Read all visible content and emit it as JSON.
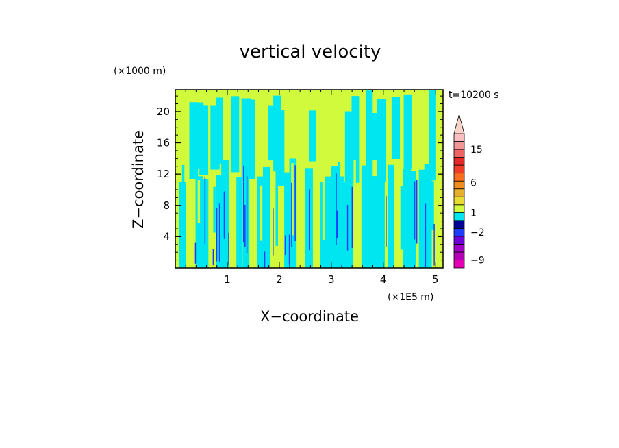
{
  "chart_data": {
    "type": "heatmap",
    "title": "vertical velocity",
    "xlabel": "X−coordinate",
    "ylabel": "Z−coordinate",
    "x_unit": "(×1E5 m)",
    "y_unit": "(×1000 m)",
    "time_label": "t=10200 s",
    "xlim": [
      0,
      5.15
    ],
    "ylim": [
      0,
      22.8
    ],
    "x_ticks": [
      {
        "value": 1,
        "label": "1"
      },
      {
        "value": 2,
        "label": "2"
      },
      {
        "value": 3,
        "label": "3"
      },
      {
        "value": 4,
        "label": "4"
      },
      {
        "value": 5,
        "label": "5"
      }
    ],
    "y_ticks": [
      {
        "value": 4,
        "label": "4"
      },
      {
        "value": 8,
        "label": "8"
      },
      {
        "value": 12,
        "label": "12"
      },
      {
        "value": 16,
        "label": "16"
      },
      {
        "value": 20,
        "label": "20"
      }
    ],
    "colorbar": {
      "bins_bottom_to_top": [
        {
          "color": "#e600b4"
        },
        {
          "color": "#b400b4"
        },
        {
          "color": "#a000c8"
        },
        {
          "color": "#6e00dc"
        },
        {
          "color": "#1e3cff"
        },
        {
          "color": "#000096"
        },
        {
          "color": "#00e6f0"
        },
        {
          "color": "#d2fa3c"
        },
        {
          "color": "#e6dc32"
        },
        {
          "color": "#e6af2d"
        },
        {
          "color": "#f08c1e"
        },
        {
          "color": "#fa6e1e"
        },
        {
          "color": "#f03c28"
        },
        {
          "color": "#e62828"
        },
        {
          "color": "#f06464"
        },
        {
          "color": "#f09696"
        },
        {
          "color": "#fabebe"
        }
      ],
      "extend": "max",
      "extend_color": "#fad2c8",
      "labels": [
        {
          "value": -9,
          "label": "−9"
        },
        {
          "value": -2,
          "label": "−2"
        },
        {
          "value": 1,
          "label": "1"
        },
        {
          "value": 6,
          "label": "6"
        },
        {
          "value": 15,
          "label": "15"
        }
      ]
    },
    "field": {
      "dominant_positive_color": "#d2fa3c",
      "dominant_negative_color": "#00e6f0",
      "strong_updraft_color": "#1e3cff",
      "x_columns": [
        0.05,
        0.15,
        0.25,
        0.35,
        0.45,
        0.55,
        0.65,
        0.75,
        0.85,
        0.95,
        1.05,
        1.15,
        1.25,
        1.35,
        1.45,
        1.55,
        1.65,
        1.75,
        1.85,
        1.95,
        2.05,
        2.15,
        2.25,
        2.35,
        2.45,
        2.55,
        2.65,
        2.75,
        2.85,
        2.95,
        3.05,
        3.15,
        3.25,
        3.35,
        3.45,
        3.55,
        3.65,
        3.75,
        3.85,
        3.95,
        4.05,
        4.15,
        4.25,
        4.35,
        4.45,
        4.55,
        4.65,
        4.75,
        4.85,
        4.95,
        5.05
      ],
      "z_profile_upper": [
        1,
        1,
        1,
        0,
        0,
        0,
        1,
        0,
        0,
        1,
        1,
        0,
        1,
        0,
        0,
        1,
        1,
        1,
        0,
        0,
        0,
        1,
        1,
        1,
        1,
        1,
        0,
        1,
        1,
        1,
        1,
        1,
        1,
        0,
        0,
        1,
        1,
        0,
        0,
        0,
        1,
        1,
        0,
        1,
        0,
        1,
        1,
        1,
        1,
        0,
        1
      ],
      "z_profile_lower": [
        1,
        0,
        1,
        1,
        0,
        0,
        1,
        1,
        0,
        0,
        1,
        1,
        0,
        0,
        1,
        1,
        0,
        0,
        1,
        1,
        1,
        0,
        0,
        1,
        1,
        0,
        1,
        1,
        0,
        0,
        0,
        0,
        0,
        0,
        1,
        1,
        0,
        0,
        0,
        0,
        1,
        0,
        1,
        1,
        0,
        0,
        1,
        0,
        0,
        1,
        1
      ]
    }
  }
}
